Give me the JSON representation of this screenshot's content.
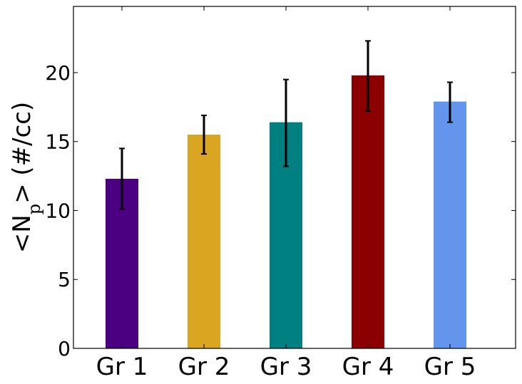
{
  "chart_data": {
    "type": "bar",
    "categories": [
      "Gr 1",
      "Gr 2",
      "Gr 3",
      "Gr 4",
      "Gr 5"
    ],
    "values": [
      12.3,
      15.5,
      16.4,
      19.8,
      17.9
    ],
    "errors": [
      [
        10.1,
        14.5
      ],
      [
        14.1,
        16.9
      ],
      [
        13.2,
        19.5
      ],
      [
        17.2,
        22.3
      ],
      [
        16.4,
        19.3
      ]
    ],
    "colors": [
      "#4b0082",
      "#daa520",
      "#008080",
      "#8b0000",
      "#6495ed"
    ],
    "title": "",
    "xlabel": "",
    "ylabel": {
      "prefix": "<N",
      "subscript": "p",
      "suffix": "> (#/cc)"
    },
    "ylim": [
      0,
      24.8
    ],
    "yticks": [
      0,
      5,
      10,
      15,
      20
    ],
    "grid": false
  }
}
